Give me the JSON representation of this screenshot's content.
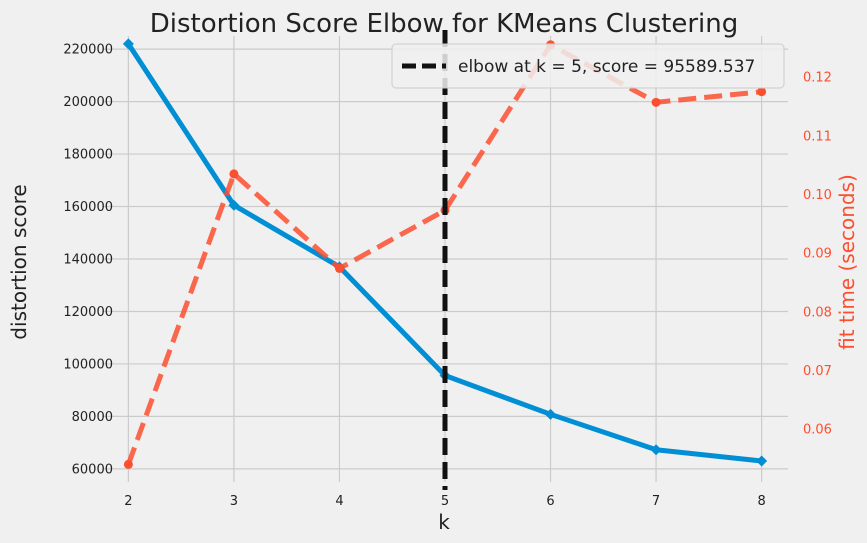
{
  "chart_data": {
    "type": "line",
    "title": "Distortion Score Elbow for KMeans Clustering",
    "xlabel": "k",
    "ylabel": "distortion score",
    "y2label": "fit time (seconds)",
    "x": [
      2,
      3,
      4,
      5,
      6,
      7,
      8
    ],
    "xlim": [
      1.75,
      8.25
    ],
    "ylim": [
      55000,
      225000
    ],
    "y2lim": [
      0.051,
      0.127
    ],
    "xticks": [
      "2",
      "3",
      "4",
      "5",
      "6",
      "7",
      "8"
    ],
    "yticks": [
      "60000",
      "80000",
      "100000",
      "120000",
      "140000",
      "160000",
      "180000",
      "200000",
      "220000"
    ],
    "y2ticks": [
      "0.06",
      "0.07",
      "0.08",
      "0.09",
      "0.10",
      "0.11",
      "0.12"
    ],
    "grid": true,
    "legend_position": "top-right",
    "series": [
      {
        "key": "distortion",
        "axis": "left",
        "color": "#008fd5",
        "style": "solid",
        "marker": "diamond",
        "values": [
          222000,
          160500,
          137000,
          95589.537,
          80800,
          67300,
          63000
        ]
      },
      {
        "key": "fit_time",
        "axis": "right",
        "color": "#fc4f30",
        "style": "dashed",
        "marker": "circle",
        "values": [
          0.054,
          0.1035,
          0.0874,
          0.0973,
          0.1255,
          0.1157,
          0.1175
        ]
      }
    ],
    "elbow": {
      "k": 5,
      "score": "95589.537",
      "legend_text": "elbow at k = 5, score = 95589.537",
      "color": "#111111"
    }
  }
}
